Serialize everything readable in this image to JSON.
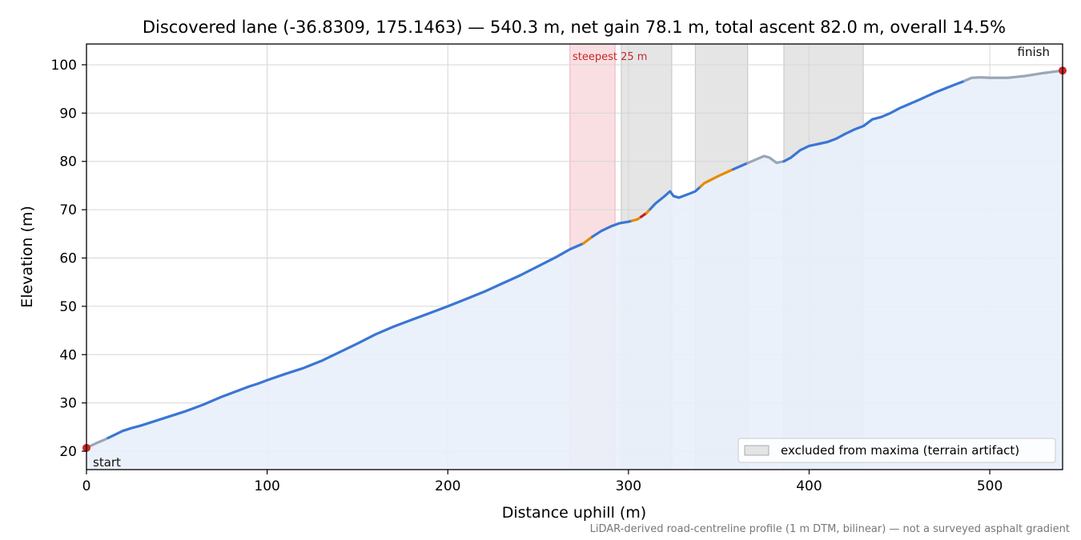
{
  "chart_data": {
    "type": "line",
    "title": "Discovered lane (-36.8309, 175.1463) — 540.3 m, net gain 78.1 m, total ascent 82.0 m, overall 14.5%",
    "xlabel": "Distance uphill (m)",
    "ylabel": "Elevation (m)",
    "xlim": [
      0,
      540.3
    ],
    "ylim": [
      16.2,
      104.3
    ],
    "xticks": [
      0,
      100,
      200,
      300,
      400,
      500
    ],
    "yticks": [
      20,
      30,
      40,
      50,
      60,
      70,
      80,
      90,
      100
    ],
    "grid": true,
    "legend_position": "lower-right",
    "legend": [
      {
        "label": "excluded from maxima (terrain artifact)",
        "color": "#b4b4b4"
      }
    ],
    "footnote": "LiDAR-derived road-centreline profile (1 m DTM, bilinear) — not a surveyed asphalt gradient",
    "annotations": {
      "start": "start",
      "finish": "finish",
      "steepest": "steepest 25 m"
    },
    "steepest_band": [
      267.6,
      292.6
    ],
    "excluded_bands": [
      [
        296,
        324
      ],
      [
        337,
        366
      ],
      [
        386,
        430
      ]
    ],
    "start_point": [
      0,
      20.7
    ],
    "finish_point": [
      540.3,
      98.8
    ],
    "colors": {
      "line": "#3a76d4",
      "excluded_line": "#9aa6b6",
      "steep": "#e68a00",
      "steepest": "#c21f1f",
      "fill": "#e9f0f9",
      "excluded_band": "#b4b4b4",
      "steepest_band": "#f2b8bf",
      "marker": "#c62828",
      "steepest_text": "#c62828",
      "footnote": "#777777"
    },
    "series": [
      {
        "values": [
          [
            0,
            20.7
          ],
          [
            5,
            21.6
          ],
          [
            10,
            22.4
          ],
          [
            15,
            23.3
          ],
          [
            20,
            24.2
          ],
          [
            25,
            24.8
          ],
          [
            30,
            25.3
          ],
          [
            35,
            25.9
          ],
          [
            40,
            26.5
          ],
          [
            45,
            27.1
          ],
          [
            50,
            27.7
          ],
          [
            55,
            28.3
          ],
          [
            60,
            29.0
          ],
          [
            65,
            29.7
          ],
          [
            70,
            30.5
          ],
          [
            75,
            31.3
          ],
          [
            80,
            32.0
          ],
          [
            85,
            32.7
          ],
          [
            90,
            33.4
          ],
          [
            95,
            34.0
          ],
          [
            100,
            34.7
          ],
          [
            110,
            36.0
          ],
          [
            120,
            37.2
          ],
          [
            130,
            38.7
          ],
          [
            140,
            40.5
          ],
          [
            150,
            42.3
          ],
          [
            160,
            44.2
          ],
          [
            170,
            45.8
          ],
          [
            180,
            47.2
          ],
          [
            190,
            48.6
          ],
          [
            200,
            50.0
          ],
          [
            210,
            51.5
          ],
          [
            220,
            53.0
          ],
          [
            230,
            54.7
          ],
          [
            240,
            56.4
          ],
          [
            250,
            58.3
          ],
          [
            260,
            60.2
          ],
          [
            267.6,
            61.8
          ],
          [
            275,
            63.0
          ],
          [
            280,
            64.4
          ],
          [
            285,
            65.6
          ],
          [
            290,
            66.5
          ],
          [
            295,
            67.2
          ],
          [
            300,
            67.5
          ],
          [
            305,
            68.0
          ],
          [
            310,
            69.3
          ],
          [
            315,
            71.3
          ],
          [
            320,
            72.8
          ],
          [
            323,
            73.8
          ],
          [
            325,
            72.8
          ],
          [
            328,
            72.5
          ],
          [
            333,
            73.2
          ],
          [
            337,
            73.8
          ],
          [
            342,
            75.5
          ],
          [
            350,
            77.0
          ],
          [
            357,
            78.2
          ],
          [
            365,
            79.5
          ],
          [
            370,
            80.3
          ],
          [
            375,
            81.1
          ],
          [
            378,
            80.8
          ],
          [
            382,
            79.7
          ],
          [
            386,
            80.0
          ],
          [
            390,
            80.8
          ],
          [
            395,
            82.3
          ],
          [
            400,
            83.2
          ],
          [
            405,
            83.6
          ],
          [
            410,
            84.0
          ],
          [
            415,
            84.7
          ],
          [
            420,
            85.7
          ],
          [
            425,
            86.6
          ],
          [
            430,
            87.3
          ],
          [
            435,
            88.7
          ],
          [
            440,
            89.2
          ],
          [
            445,
            90.0
          ],
          [
            450,
            91.0
          ],
          [
            455,
            91.8
          ],
          [
            460,
            92.6
          ],
          [
            470,
            94.3
          ],
          [
            480,
            95.8
          ],
          [
            485,
            96.5
          ],
          [
            490,
            97.3
          ],
          [
            495,
            97.4
          ],
          [
            500,
            97.3
          ],
          [
            510,
            97.3
          ],
          [
            520,
            97.7
          ],
          [
            530,
            98.3
          ],
          [
            540.3,
            98.8
          ]
        ]
      }
    ],
    "segments": [
      {
        "range": [
          0,
          12
        ],
        "style": "excluded"
      },
      {
        "range": [
          12,
          275
        ],
        "style": "normal"
      },
      {
        "range": [
          275,
          280
        ],
        "style": "steep"
      },
      {
        "range": [
          280,
          302
        ],
        "style": "normal"
      },
      {
        "range": [
          302,
          307
        ],
        "style": "steep"
      },
      {
        "range": [
          307,
          310
        ],
        "style": "steepest"
      },
      {
        "range": [
          310,
          312
        ],
        "style": "steep"
      },
      {
        "range": [
          312,
          340
        ],
        "style": "normal"
      },
      {
        "range": [
          340,
          358
        ],
        "style": "steep"
      },
      {
        "range": [
          358,
          366
        ],
        "style": "normal"
      },
      {
        "range": [
          366,
          386
        ],
        "style": "excluded"
      },
      {
        "range": [
          386,
          486
        ],
        "style": "normal"
      },
      {
        "range": [
          486,
          540.3
        ],
        "style": "excluded"
      }
    ]
  }
}
